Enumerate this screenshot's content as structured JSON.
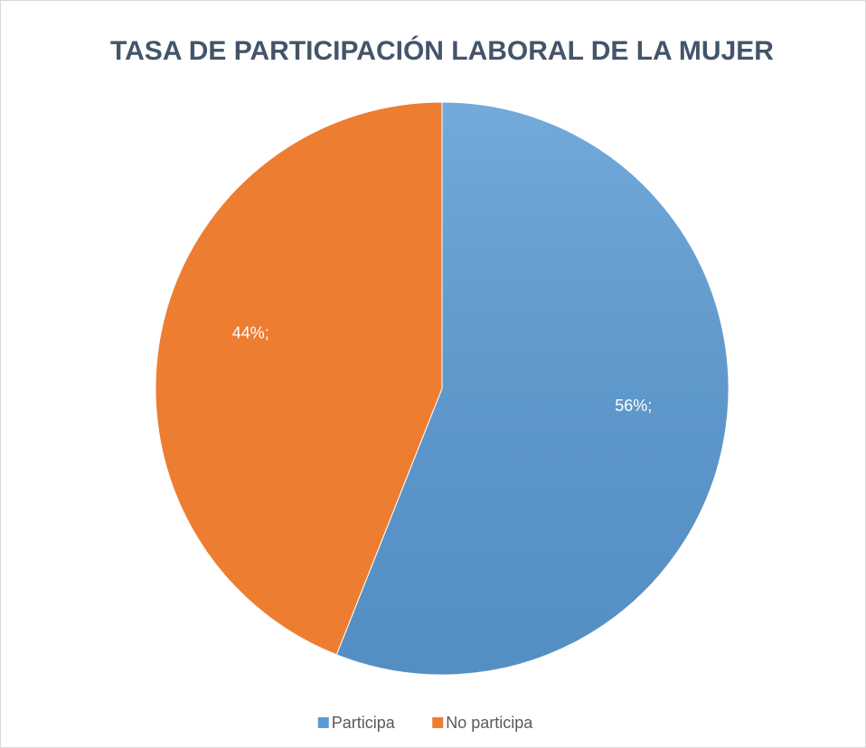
{
  "chart_data": {
    "type": "pie",
    "title": "TASA DE PARTICIPACIÓN LABORAL DE LA MUJER",
    "categories": [
      "Participa",
      "No participa"
    ],
    "values": [
      56,
      44
    ],
    "value_labels": [
      "56%;",
      "44%;"
    ],
    "colors": [
      "#5b9bd5",
      "#ed7d31"
    ],
    "legend": "bottom"
  }
}
